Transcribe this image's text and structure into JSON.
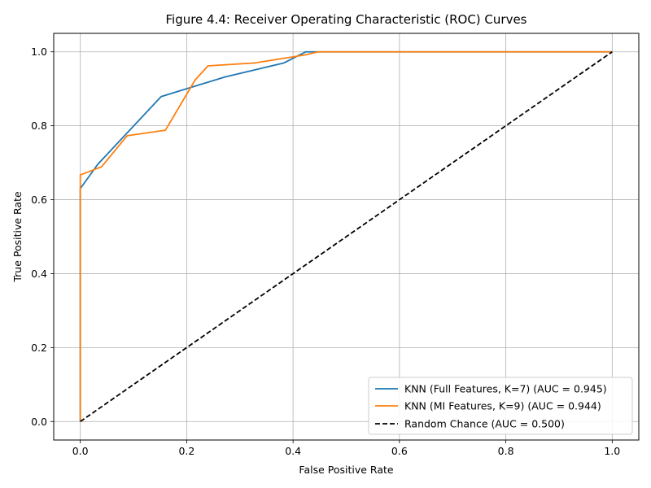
{
  "chart_data": {
    "type": "line",
    "title": "Figure 4.4: Receiver Operating Characteristic (ROC) Curves",
    "xlabel": "False Positive Rate",
    "ylabel": "True Positive Rate",
    "xlim": [
      -0.05,
      1.05
    ],
    "ylim": [
      -0.05,
      1.05
    ],
    "xticks": [
      0.0,
      0.2,
      0.4,
      0.6,
      0.8,
      1.0
    ],
    "yticks": [
      0.0,
      0.2,
      0.4,
      0.6,
      0.8,
      1.0
    ],
    "xtick_labels": [
      "0.0",
      "0.2",
      "0.4",
      "0.6",
      "0.8",
      "1.0"
    ],
    "ytick_labels": [
      "0.0",
      "0.2",
      "0.4",
      "0.6",
      "0.8",
      "1.0"
    ],
    "grid": true,
    "legend_position": "lower-right",
    "series": [
      {
        "name": "KNN (Full Features, K=7) (AUC = 0.945)",
        "color": "#1f77b4",
        "dash": "solid",
        "x": [
          0.0,
          0.0,
          0.0,
          0.033,
          0.152,
          0.272,
          0.383,
          0.424,
          0.447,
          1.0
        ],
        "y": [
          0.0,
          0.0,
          0.63,
          0.696,
          0.879,
          0.932,
          0.97,
          1.0,
          1.0,
          1.0
        ]
      },
      {
        "name": "KNN (MI Features, K=9) (AUC = 0.944)",
        "color": "#ff7f0e",
        "dash": "solid",
        "x": [
          0.0,
          0.0,
          0.0,
          0.04,
          0.088,
          0.16,
          0.216,
          0.24,
          0.328,
          0.424,
          0.447,
          1.0
        ],
        "y": [
          0.0,
          0.0,
          0.667,
          0.689,
          0.773,
          0.788,
          0.924,
          0.962,
          0.97,
          0.992,
          1.0,
          1.0
        ]
      },
      {
        "name": "Random Chance (AUC = 0.500)",
        "color": "#000000",
        "dash": "dashed",
        "x": [
          0.0,
          1.0
        ],
        "y": [
          0.0,
          1.0
        ]
      }
    ]
  }
}
